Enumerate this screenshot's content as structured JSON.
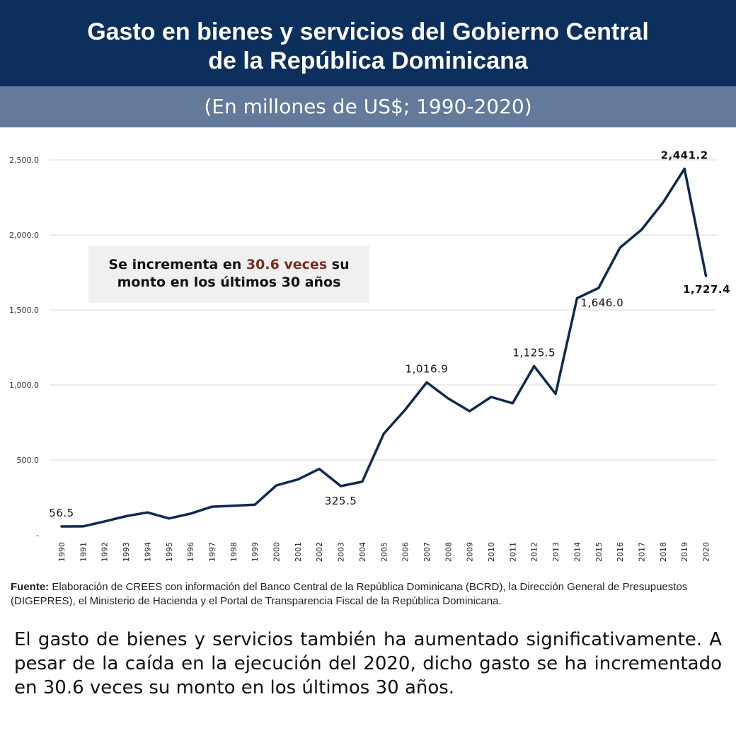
{
  "header": {
    "title_line1": "Gasto en bienes y servicios del Gobierno Central",
    "title_line2": "de la República Dominicana",
    "subtitle": "(En millones de US$; 1990-2020)"
  },
  "callout": {
    "text_before": "Se incrementa en ",
    "highlight": "30.6 veces",
    "text_after": " su",
    "line2": "monto en los últimos 30 años"
  },
  "source": {
    "label": "Fuente:",
    "text": " Elaboración de CREES con información del Banco Central de la República Dominicana (BCRD), la Dirección General de Presupuestos (DIGEPRES), el Ministerio de Hacienda y el Portal de Transparencia Fiscal de la República Dominicana."
  },
  "summary": "El gasto de bienes y servicios también ha aumentado significativamente. A pesar de la caída en la ejecución del 2020, dicho gasto se ha incrementado en 30.6 veces su monto en los últimos 30 años.",
  "colors": {
    "header_bg": "#0d2f5e",
    "subheader_bg": "#647a9b",
    "line": "#10294f",
    "highlight": "#7b2a24"
  },
  "chart_data": {
    "type": "line",
    "title": "Gasto en bienes y servicios del Gobierno Central de la República Dominicana",
    "xlabel": "",
    "ylabel": "",
    "ylim": [
      0,
      2500
    ],
    "y_ticks": [
      {
        "value": 0,
        "label": "-"
      },
      {
        "value": 500,
        "label": "500.0"
      },
      {
        "value": 1000,
        "label": "1,000.0"
      },
      {
        "value": 1500,
        "label": "1,500.0"
      },
      {
        "value": 2000,
        "label": "2,000.0"
      },
      {
        "value": 2500,
        "label": "2,500.0"
      }
    ],
    "categories": [
      "1990",
      "1991",
      "1992",
      "1993",
      "1994",
      "1995",
      "1996",
      "1997",
      "1998",
      "1999",
      "2000",
      "2001",
      "2002",
      "2003",
      "2004",
      "2005",
      "2006",
      "2007",
      "2008",
      "2009",
      "2010",
      "2011",
      "2012",
      "2013",
      "2014",
      "2015",
      "2016",
      "2017",
      "2018",
      "2019",
      "2020"
    ],
    "series": [
      {
        "name": "Gasto en bienes y servicios",
        "values": [
          56.5,
          57,
          90,
          125,
          150,
          110,
          142,
          188,
          195,
          202,
          330,
          370,
          440,
          325.5,
          355,
          675,
          835,
          1016.9,
          910,
          825,
          920,
          878,
          1125.5,
          940,
          1578,
          1646.0,
          1915,
          2035,
          2215,
          2441.2,
          1727.4
        ]
      }
    ],
    "annotations": [
      {
        "index": 0,
        "label": "56.5",
        "bold": false,
        "position": "above"
      },
      {
        "index": 13,
        "label": "325.5",
        "bold": false,
        "position": "below"
      },
      {
        "index": 17,
        "label": "1,016.9",
        "bold": false,
        "position": "above"
      },
      {
        "index": 22,
        "label": "1,125.5",
        "bold": false,
        "position": "above"
      },
      {
        "index": 25,
        "label": "1,646.0",
        "bold": false,
        "position": "below"
      },
      {
        "index": 29,
        "label": "2,441.2",
        "bold": true,
        "position": "above"
      },
      {
        "index": 30,
        "label": "1,727.4",
        "bold": true,
        "position": "below"
      }
    ]
  }
}
